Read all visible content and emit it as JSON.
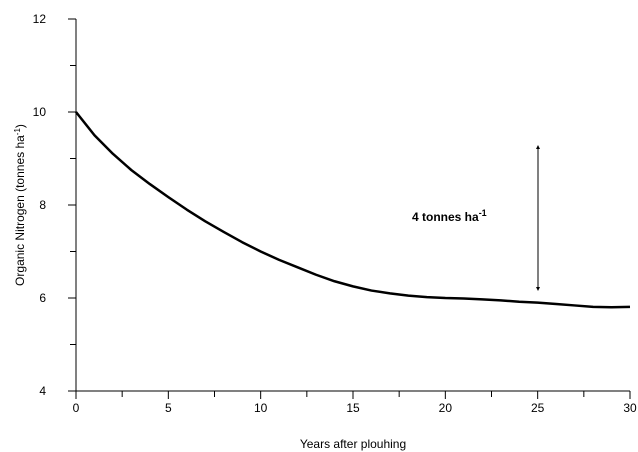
{
  "chart_data": {
    "type": "line",
    "x_label": "Years after plouhing",
    "y_label": [
      "Organic Nitrogen (tonnes ha",
      "-1",
      ")"
    ],
    "annotation": [
      "4 tonnes ha",
      "-1"
    ],
    "x": [
      0,
      1,
      2,
      3,
      4,
      5,
      6,
      7,
      8,
      9,
      10,
      11,
      12,
      13,
      14,
      15,
      16,
      17,
      18,
      19,
      20,
      21,
      22,
      23,
      24,
      25,
      26,
      27,
      28,
      29,
      30
    ],
    "series": [
      {
        "color": "#000000",
        "values": [
          10,
          9.5,
          9.1,
          8.75,
          8.45,
          8.17,
          7.9,
          7.65,
          7.42,
          7.2,
          7.0,
          6.82,
          6.66,
          6.5,
          6.36,
          6.25,
          6.16,
          6.1,
          6.05,
          6.02,
          6.0,
          5.99,
          5.97,
          5.95,
          5.92,
          5.9,
          5.87,
          5.84,
          5.81,
          5.8,
          5.81
        ]
      }
    ],
    "xlim": [
      0,
      30
    ],
    "xticks": [
      0,
      5,
      10,
      15,
      20,
      25,
      30
    ],
    "ylim": [
      4,
      12
    ],
    "yticks": [
      4,
      6,
      8,
      10,
      12
    ]
  }
}
